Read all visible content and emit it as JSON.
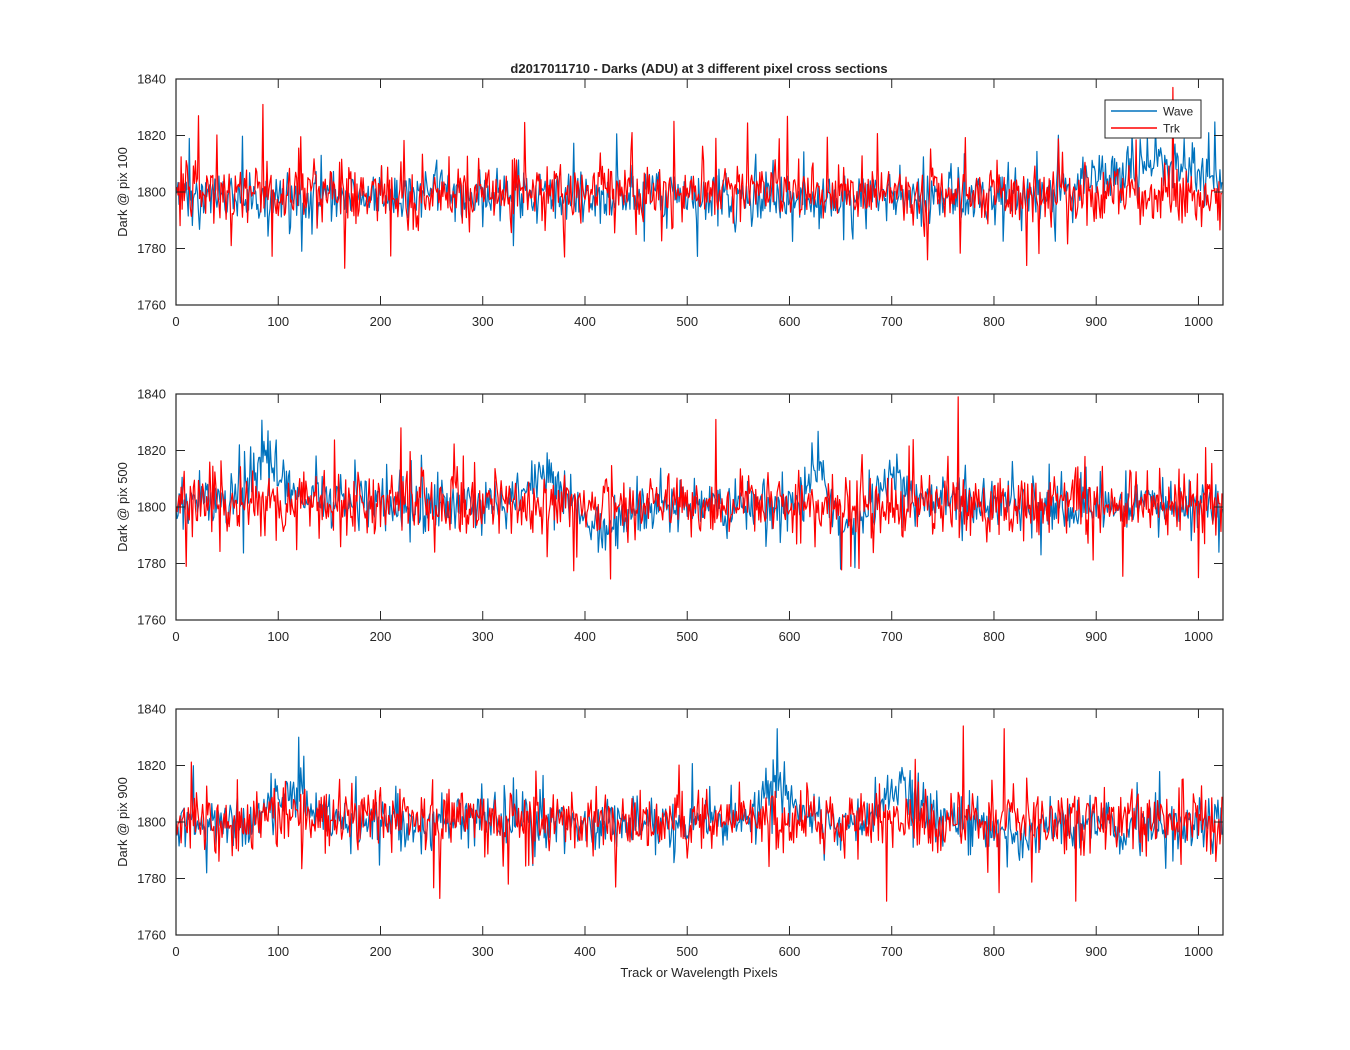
{
  "figure": {
    "title": "d2017011710 - Darks (ADU) at 3 different pixel cross sections",
    "xlabel": "Track or Wavelength Pixels"
  },
  "colors": {
    "wave": "#0072BD",
    "trk": "#FF0000",
    "axis": "#262626"
  },
  "chart_data": [
    {
      "type": "line",
      "ylabel": "Dark @ pix 100",
      "xlim": [
        0,
        1024
      ],
      "ylim": [
        1760,
        1840
      ],
      "xticks": [
        0,
        100,
        200,
        300,
        400,
        500,
        600,
        700,
        800,
        900,
        1000
      ],
      "yticks": [
        1760,
        1780,
        1800,
        1820,
        1840
      ],
      "legend": {
        "placement": "top-right",
        "entries": [
          "Wave",
          "Trk"
        ]
      },
      "series": [
        {
          "name": "Wave",
          "color": "#0072BD",
          "n": 1024,
          "mean": 1798,
          "noise": 4.5,
          "bumps": [
            {
              "center": 255,
              "width": 10,
              "amp": 6
            },
            {
              "center": 960,
              "width": 55,
              "amp": 12
            }
          ],
          "spikes": [
            {
              "x": 958,
              "value": 1822
            },
            {
              "x": 1010,
              "value": 1821
            },
            {
              "x": 330,
              "value": 1781
            }
          ]
        },
        {
          "name": "Trk",
          "color": "#FF0000",
          "n": 1024,
          "mean": 1800,
          "noise": 5.5,
          "spikes": [
            {
              "x": 85,
              "value": 1831
            },
            {
              "x": 165,
              "value": 1773
            },
            {
              "x": 380,
              "value": 1777
            },
            {
              "x": 735,
              "value": 1776
            },
            {
              "x": 832,
              "value": 1774
            },
            {
              "x": 975,
              "value": 1837
            },
            {
              "x": 22,
              "value": 1827
            },
            {
              "x": 487,
              "value": 1825
            }
          ]
        }
      ]
    },
    {
      "type": "line",
      "ylabel": "Dark @ pix 500",
      "xlim": [
        0,
        1024
      ],
      "ylim": [
        1760,
        1840
      ],
      "xticks": [
        0,
        100,
        200,
        300,
        400,
        500,
        600,
        700,
        800,
        900,
        1000
      ],
      "yticks": [
        1760,
        1780,
        1800,
        1820,
        1840
      ],
      "series": [
        {
          "name": "Wave",
          "color": "#0072BD",
          "n": 1024,
          "mean": 1801,
          "noise": 4.5,
          "bumps": [
            {
              "center": 85,
              "width": 12,
              "amp": 13
            },
            {
              "center": 110,
              "width": 20,
              "amp": 6
            },
            {
              "center": 360,
              "width": 14,
              "amp": 12
            },
            {
              "center": 420,
              "width": 20,
              "amp": -9
            },
            {
              "center": 625,
              "width": 10,
              "amp": 12
            },
            {
              "center": 660,
              "width": 14,
              "amp": -8
            },
            {
              "center": 700,
              "width": 12,
              "amp": 10
            }
          ],
          "spikes": [
            {
              "x": 650,
              "value": 1778
            },
            {
              "x": 1020,
              "value": 1784
            }
          ]
        },
        {
          "name": "Trk",
          "color": "#FF0000",
          "n": 1024,
          "mean": 1801,
          "noise": 5.5,
          "spikes": [
            {
              "x": 765,
              "value": 1839
            },
            {
              "x": 220,
              "value": 1828
            },
            {
              "x": 1000,
              "value": 1775
            },
            {
              "x": 10,
              "value": 1779
            },
            {
              "x": 528,
              "value": 1831
            },
            {
              "x": 660,
              "value": 1779
            }
          ]
        }
      ]
    },
    {
      "type": "line",
      "ylabel": "Dark @ pix 900",
      "xlim": [
        0,
        1024
      ],
      "ylim": [
        1760,
        1840
      ],
      "xticks": [
        0,
        100,
        200,
        300,
        400,
        500,
        600,
        700,
        800,
        900,
        1000
      ],
      "yticks": [
        1760,
        1780,
        1800,
        1820,
        1840
      ],
      "series": [
        {
          "name": "Wave",
          "color": "#0072BD",
          "n": 1024,
          "mean": 1800,
          "noise": 4.5,
          "bumps": [
            {
              "center": 110,
              "width": 14,
              "amp": 12
            },
            {
              "center": 590,
              "width": 12,
              "amp": 14
            },
            {
              "center": 710,
              "width": 16,
              "amp": 12
            },
            {
              "center": 830,
              "width": 25,
              "amp": -5
            }
          ],
          "spikes": [
            {
              "x": 588,
              "value": 1833
            },
            {
              "x": 120,
              "value": 1830
            },
            {
              "x": 30,
              "value": 1782
            }
          ]
        },
        {
          "name": "Trk",
          "color": "#FF0000",
          "n": 1024,
          "mean": 1801,
          "noise": 5.5,
          "spikes": [
            {
              "x": 695,
              "value": 1772
            },
            {
              "x": 880,
              "value": 1772
            },
            {
              "x": 770,
              "value": 1834
            },
            {
              "x": 810,
              "value": 1833
            },
            {
              "x": 325,
              "value": 1778
            },
            {
              "x": 430,
              "value": 1777
            },
            {
              "x": 805,
              "value": 1775
            }
          ]
        }
      ]
    }
  ]
}
